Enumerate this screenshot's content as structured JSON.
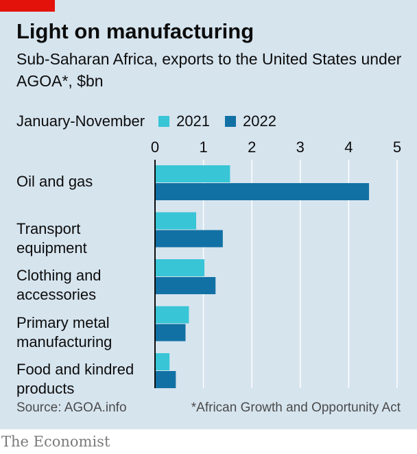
{
  "header": {
    "title": "Light on manufacturing",
    "subtitle": "Sub-Saharan Africa, exports to the United States under AGOA*, $bn"
  },
  "legend": {
    "period_label": "January-November",
    "items": [
      {
        "label": "2021",
        "color": "#38c5d6"
      },
      {
        "label": "2022",
        "color": "#1271a4"
      }
    ]
  },
  "chart_data": {
    "type": "bar",
    "orientation": "horizontal",
    "categories": [
      "Oil and gas",
      "Transport equipment",
      "Clothing and accessories",
      "Primary metal manufacturing",
      "Food and kindred products"
    ],
    "series": [
      {
        "name": "2021",
        "color": "#38c5d6",
        "values": [
          1.55,
          0.85,
          1.02,
          0.7,
          0.3
        ]
      },
      {
        "name": "2022",
        "color": "#1271a4",
        "values": [
          4.42,
          1.4,
          1.25,
          0.63,
          0.43
        ]
      }
    ],
    "xlim": [
      0,
      5
    ],
    "xticks": [
      "0",
      "1",
      "2",
      "3",
      "4",
      "5"
    ],
    "xaxis_position": "top",
    "grid": true,
    "legend_position": "top-left"
  },
  "footer": {
    "source": "Source: AGOA.info",
    "footnote": "*African Growth and Opportunity Act",
    "brand": "The Economist"
  }
}
